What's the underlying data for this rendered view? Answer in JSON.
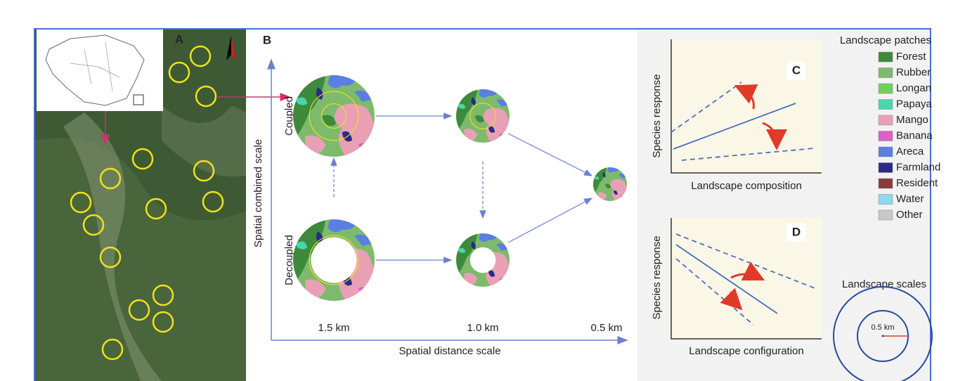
{
  "panel_labels": {
    "a": "A",
    "b": "B",
    "c": "C",
    "d": "D"
  },
  "panel_b": {
    "y_axis_label": "Spatial combined scale",
    "x_axis_label": "Spatial distance scale",
    "rows": [
      "Coupled",
      "Decoupled"
    ],
    "distances": [
      "1.5 km",
      "1.0 km",
      "0.5 km"
    ]
  },
  "panel_c": {
    "y_axis_label": "Species response",
    "x_axis_label": "Landscape composition"
  },
  "panel_d": {
    "y_axis_label": "Species response",
    "x_axis_label": "Landscape configuration"
  },
  "legend": {
    "title": "Landscape patches",
    "items": [
      {
        "label": "Forest",
        "color": "#3e8a3c"
      },
      {
        "label": "Rubber",
        "color": "#7dba6c"
      },
      {
        "label": "Longan",
        "color": "#6fd057"
      },
      {
        "label": "Papaya",
        "color": "#48d6ad"
      },
      {
        "label": "Mango",
        "color": "#e9a0b5"
      },
      {
        "label": "Banana",
        "color": "#df5fc8"
      },
      {
        "label": "Areca",
        "color": "#5a7fe0"
      },
      {
        "label": "Farmland",
        "color": "#2b2a88"
      },
      {
        "label": "Resident",
        "color": "#8a3a3a"
      },
      {
        "label": "Water",
        "color": "#8ed8f0"
      },
      {
        "label": "Other",
        "color": "#c8c8c8"
      }
    ]
  },
  "scales": {
    "title": "Landscape scales",
    "radius_label": "0.5 km"
  }
}
